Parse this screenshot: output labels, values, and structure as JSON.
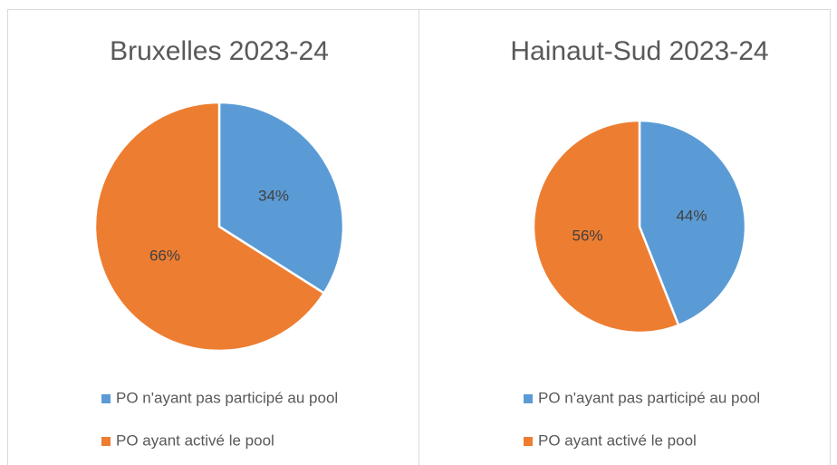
{
  "chart_data": [
    {
      "type": "pie",
      "title": "Bruxelles 2023-24",
      "categories": [
        "PO n'ayant pas participé au pool",
        "PO ayant activé le pool"
      ],
      "values": [
        34,
        66
      ],
      "value_labels": [
        "34%",
        "66%"
      ],
      "colors": [
        "#5b9bd5",
        "#ed7d31"
      ]
    },
    {
      "type": "pie",
      "title": "Hainaut-Sud 2023-24",
      "categories": [
        "PO n'ayant pas participé au pool",
        "PO ayant activé le pool"
      ],
      "values": [
        44,
        56
      ],
      "value_labels": [
        "44%",
        "56%"
      ],
      "colors": [
        "#5b9bd5",
        "#ed7d31"
      ]
    }
  ]
}
